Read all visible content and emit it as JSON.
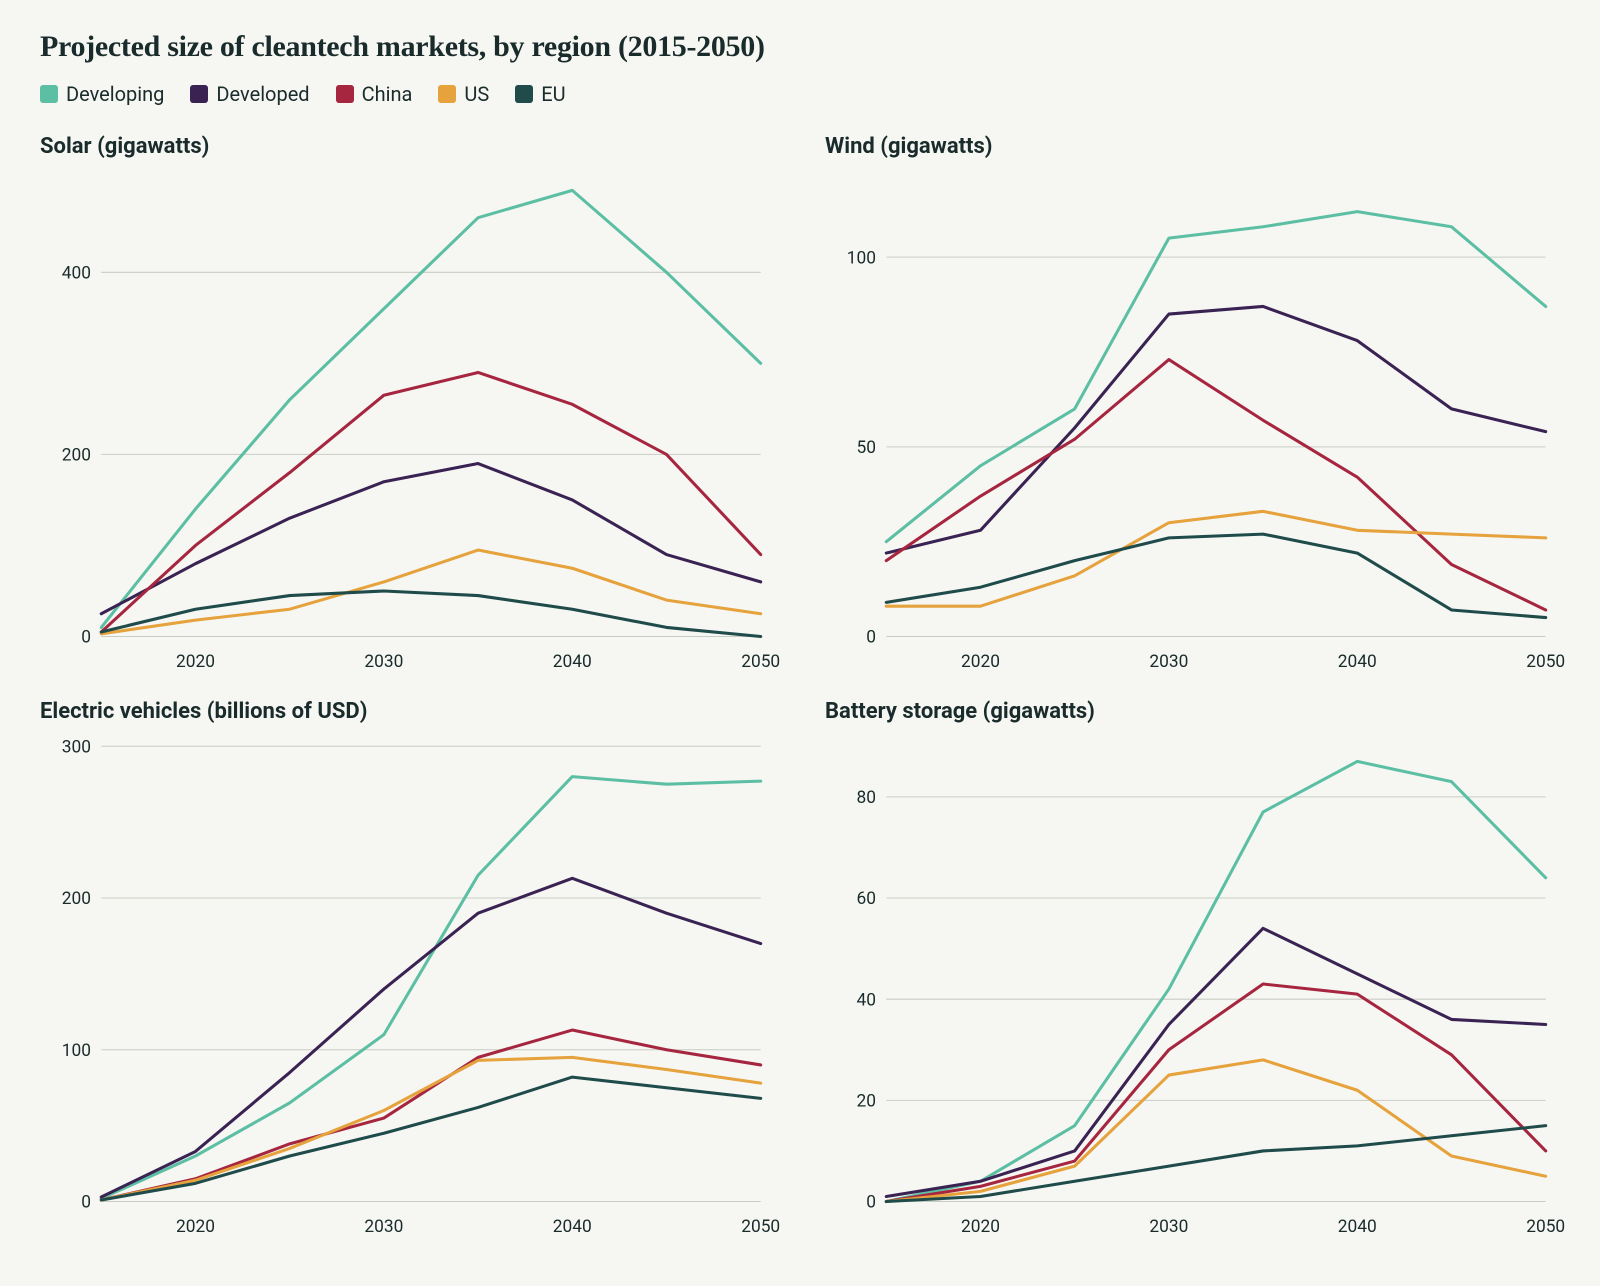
{
  "title": "Projected size of cleantech markets, by region (2015-2050)",
  "background_color": "#f6f7f3",
  "text_color": "#1a2b2b",
  "grid_color": "#c9ccc4",
  "title_fontsize": 30,
  "panel_title_fontsize": 22,
  "axis_fontsize": 17,
  "line_width": 3,
  "layout": {
    "rows": 2,
    "cols": 2,
    "aspect_ratio_per_panel": 1.25
  },
  "x": {
    "values": [
      2015,
      2020,
      2025,
      2030,
      2035,
      2040,
      2045,
      2050
    ],
    "ticks": [
      2020,
      2030,
      2040,
      2050
    ],
    "xlim": [
      2015,
      2050
    ]
  },
  "legend": [
    {
      "key": "developing",
      "label": "Developing",
      "color": "#5cbfa3"
    },
    {
      "key": "developed",
      "label": "Developed",
      "color": "#3a2353"
    },
    {
      "key": "china",
      "label": "China",
      "color": "#a6263f"
    },
    {
      "key": "us",
      "label": "US",
      "color": "#e6a23c"
    },
    {
      "key": "eu",
      "label": "EU",
      "color": "#1f4b4b"
    }
  ],
  "panels": [
    {
      "id": "solar",
      "title": "Solar (gigawatts)",
      "type": "line",
      "ylim": [
        0,
        500
      ],
      "yticks": [
        0,
        200,
        400
      ],
      "series": {
        "developing": [
          10,
          140,
          260,
          360,
          460,
          490,
          400,
          300
        ],
        "developed": [
          25,
          80,
          130,
          170,
          190,
          150,
          90,
          60
        ],
        "china": [
          5,
          100,
          180,
          265,
          290,
          255,
          200,
          90
        ],
        "us": [
          3,
          18,
          30,
          60,
          95,
          75,
          40,
          25
        ],
        "eu": [
          5,
          30,
          45,
          50,
          45,
          30,
          10,
          0
        ]
      }
    },
    {
      "id": "wind",
      "title": "Wind (gigawatts)",
      "type": "line",
      "ylim": [
        0,
        120
      ],
      "yticks": [
        0,
        50,
        100
      ],
      "series": {
        "developing": [
          25,
          45,
          60,
          105,
          108,
          112,
          108,
          87
        ],
        "developed": [
          22,
          28,
          55,
          85,
          87,
          78,
          60,
          54
        ],
        "china": [
          20,
          37,
          52,
          73,
          57,
          42,
          19,
          7
        ],
        "us": [
          8,
          8,
          16,
          30,
          33,
          28,
          27,
          26
        ],
        "eu": [
          9,
          13,
          20,
          26,
          27,
          22,
          7,
          5
        ]
      }
    },
    {
      "id": "ev",
      "title": "Electric vehicles (billions of USD)",
      "type": "line",
      "ylim": [
        0,
        300
      ],
      "yticks": [
        0,
        100,
        200,
        300
      ],
      "series": {
        "developing": [
          2,
          30,
          65,
          110,
          215,
          280,
          275,
          277
        ],
        "developed": [
          3,
          33,
          85,
          140,
          190,
          213,
          190,
          170
        ],
        "china": [
          1,
          15,
          38,
          55,
          95,
          113,
          100,
          90
        ],
        "us": [
          1,
          14,
          35,
          60,
          93,
          95,
          87,
          78
        ],
        "eu": [
          1,
          12,
          30,
          45,
          62,
          82,
          75,
          68
        ]
      }
    },
    {
      "id": "battery",
      "title": "Battery storage (gigawatts)",
      "type": "line",
      "ylim": [
        0,
        90
      ],
      "yticks": [
        0,
        20,
        40,
        60,
        80
      ],
      "series": {
        "developing": [
          0,
          4,
          15,
          42,
          77,
          87,
          83,
          64
        ],
        "developed": [
          1,
          4,
          10,
          35,
          54,
          45,
          36,
          35
        ],
        "china": [
          0,
          3,
          8,
          30,
          43,
          41,
          29,
          10
        ],
        "us": [
          0,
          2,
          7,
          25,
          28,
          22,
          9,
          5
        ],
        "eu": [
          0,
          1,
          4,
          7,
          10,
          11,
          13,
          15
        ]
      }
    }
  ]
}
